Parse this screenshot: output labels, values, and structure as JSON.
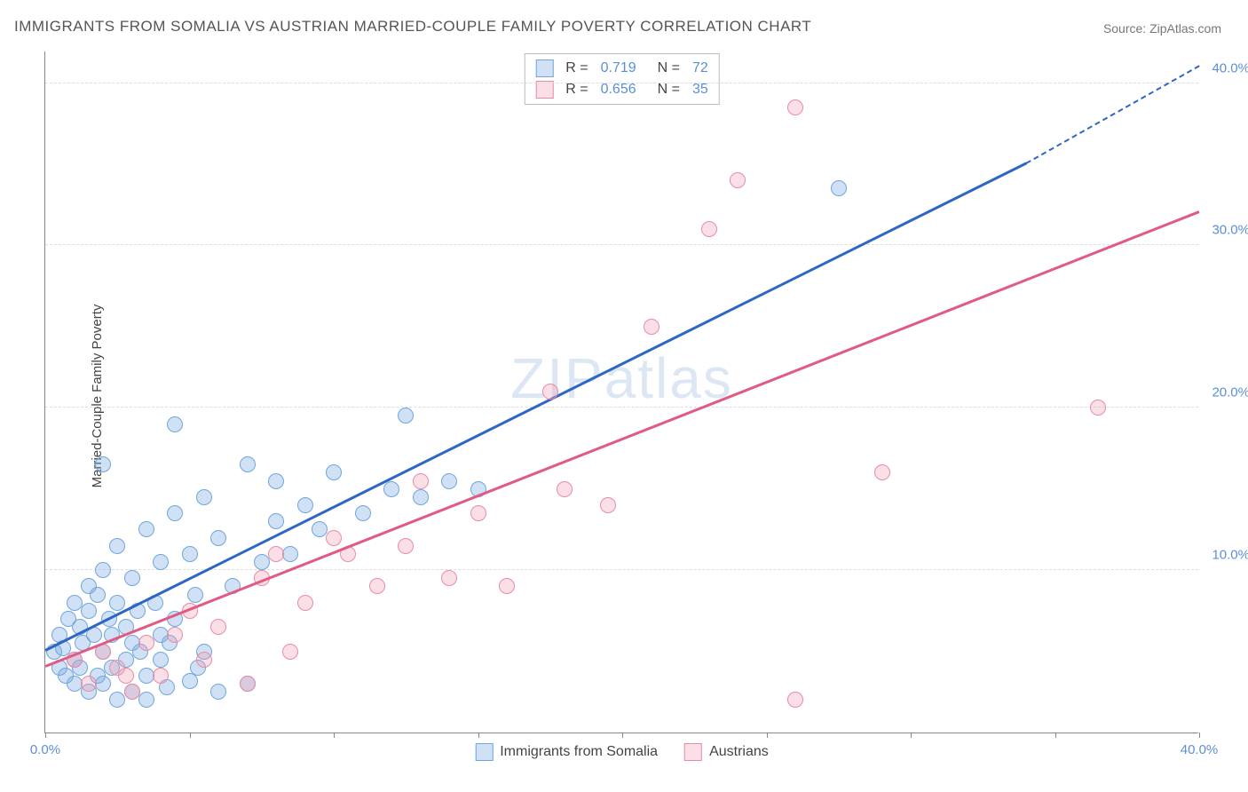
{
  "title": "IMMIGRANTS FROM SOMALIA VS AUSTRIAN MARRIED-COUPLE FAMILY POVERTY CORRELATION CHART",
  "source": "Source: ZipAtlas.com",
  "watermark": "ZIPatlas",
  "ylabel": "Married-Couple Family Poverty",
  "chart": {
    "type": "scatter",
    "xlim": [
      0,
      40
    ],
    "ylim": [
      0,
      42
    ],
    "x_ticks": [
      0,
      5,
      10,
      15,
      20,
      25,
      30,
      35,
      40
    ],
    "x_tick_labels": {
      "0": "0.0%",
      "40": "40.0%"
    },
    "y_ticks": [
      10,
      20,
      30,
      40
    ],
    "y_tick_labels": {
      "10": "10.0%",
      "20": "20.0%",
      "30": "30.0%",
      "40": "40.0%"
    },
    "grid_color": "#dddddd",
    "background_color": "#ffffff",
    "axis_color": "#888888",
    "tick_label_color": "#5b8fd6",
    "marker_radius": 9,
    "series": [
      {
        "name": "Immigrants from Somalia",
        "color_fill": "rgba(120,170,225,0.35)",
        "color_stroke": "#6fa6dd",
        "trend_color": "#2d66c4",
        "r": "0.719",
        "n": "72",
        "trend": {
          "x1": 0,
          "y1": 5.0,
          "x2": 34,
          "y2": 35.0,
          "dash_x2": 40,
          "dash_y2": 41.0
        },
        "points": [
          [
            0.3,
            5.0
          ],
          [
            0.5,
            6.0
          ],
          [
            0.6,
            5.2
          ],
          [
            0.8,
            7.0
          ],
          [
            1.0,
            4.5
          ],
          [
            1.0,
            8.0
          ],
          [
            1.2,
            6.5
          ],
          [
            1.3,
            5.5
          ],
          [
            1.5,
            7.5
          ],
          [
            1.5,
            9.0
          ],
          [
            1.7,
            6.0
          ],
          [
            1.8,
            8.5
          ],
          [
            2.0,
            5.0
          ],
          [
            2.0,
            10.0
          ],
          [
            2.2,
            7.0
          ],
          [
            2.3,
            4.0
          ],
          [
            2.5,
            8.0
          ],
          [
            2.5,
            11.5
          ],
          [
            2.8,
            6.5
          ],
          [
            3.0,
            9.5
          ],
          [
            3.0,
            5.5
          ],
          [
            3.2,
            7.5
          ],
          [
            3.5,
            12.5
          ],
          [
            3.5,
            3.5
          ],
          [
            3.8,
            8.0
          ],
          [
            4.0,
            10.5
          ],
          [
            4.0,
            6.0
          ],
          [
            4.2,
            2.8
          ],
          [
            4.5,
            7.0
          ],
          [
            4.5,
            13.5
          ],
          [
            5.0,
            11.0
          ],
          [
            5.0,
            3.2
          ],
          [
            5.2,
            8.5
          ],
          [
            5.5,
            14.5
          ],
          [
            5.5,
            5.0
          ],
          [
            6.0,
            12.0
          ],
          [
            6.0,
            2.5
          ],
          [
            6.5,
            9.0
          ],
          [
            7.0,
            16.5
          ],
          [
            7.0,
            3.0
          ],
          [
            7.5,
            10.5
          ],
          [
            8.0,
            13.0
          ],
          [
            8.0,
            15.5
          ],
          [
            8.5,
            11.0
          ],
          [
            9.0,
            14.0
          ],
          [
            9.5,
            12.5
          ],
          [
            10.0,
            16.0
          ],
          [
            11.0,
            13.5
          ],
          [
            12.0,
            15.0
          ],
          [
            12.5,
            19.5
          ],
          [
            13.0,
            14.5
          ],
          [
            14.0,
            15.5
          ],
          [
            15.0,
            15.0
          ],
          [
            1.0,
            3.0
          ],
          [
            1.5,
            2.5
          ],
          [
            2.0,
            3.0
          ],
          [
            2.5,
            2.0
          ],
          [
            3.0,
            2.5
          ],
          [
            3.5,
            2.0
          ],
          [
            4.0,
            4.5
          ],
          [
            0.5,
            4.0
          ],
          [
            0.7,
            3.5
          ],
          [
            1.2,
            4.0
          ],
          [
            1.8,
            3.5
          ],
          [
            2.3,
            6.0
          ],
          [
            2.8,
            4.5
          ],
          [
            3.3,
            5.0
          ],
          [
            4.3,
            5.5
          ],
          [
            5.3,
            4.0
          ],
          [
            4.5,
            19.0
          ],
          [
            27.5,
            33.5
          ],
          [
            2.0,
            16.5
          ]
        ]
      },
      {
        "name": "Austrians",
        "color_fill": "rgba(240,150,175,0.30)",
        "color_stroke": "#e88ca5",
        "trend_color": "#e15a82",
        "r": "0.656",
        "n": "35",
        "trend": {
          "x1": 0,
          "y1": 4.0,
          "x2": 40,
          "y2": 32.0
        },
        "points": [
          [
            1.0,
            4.5
          ],
          [
            1.5,
            3.0
          ],
          [
            2.0,
            5.0
          ],
          [
            2.5,
            4.0
          ],
          [
            3.0,
            2.5
          ],
          [
            3.5,
            5.5
          ],
          [
            4.0,
            3.5
          ],
          [
            5.5,
            4.5
          ],
          [
            6.0,
            6.5
          ],
          [
            7.0,
            3.0
          ],
          [
            7.5,
            9.5
          ],
          [
            8.5,
            5.0
          ],
          [
            9.0,
            8.0
          ],
          [
            10.0,
            12.0
          ],
          [
            10.5,
            11.0
          ],
          [
            11.5,
            9.0
          ],
          [
            12.5,
            11.5
          ],
          [
            13.0,
            15.5
          ],
          [
            14.0,
            9.5
          ],
          [
            15.0,
            13.5
          ],
          [
            16.0,
            9.0
          ],
          [
            17.5,
            21.0
          ],
          [
            18.0,
            15.0
          ],
          [
            19.5,
            14.0
          ],
          [
            21.0,
            25.0
          ],
          [
            23.0,
            31.0
          ],
          [
            24.0,
            34.0
          ],
          [
            26.0,
            38.5
          ],
          [
            29.0,
            16.0
          ],
          [
            36.5,
            20.0
          ],
          [
            26.0,
            2.0
          ],
          [
            5.0,
            7.5
          ],
          [
            8.0,
            11.0
          ],
          [
            4.5,
            6.0
          ],
          [
            2.8,
            3.5
          ]
        ]
      }
    ],
    "legend_bottom": [
      {
        "label": "Immigrants from Somalia",
        "fill": "rgba(120,170,225,0.35)",
        "stroke": "#6fa6dd"
      },
      {
        "label": "Austrians",
        "fill": "rgba(240,150,175,0.30)",
        "stroke": "#e88ca5"
      }
    ]
  }
}
